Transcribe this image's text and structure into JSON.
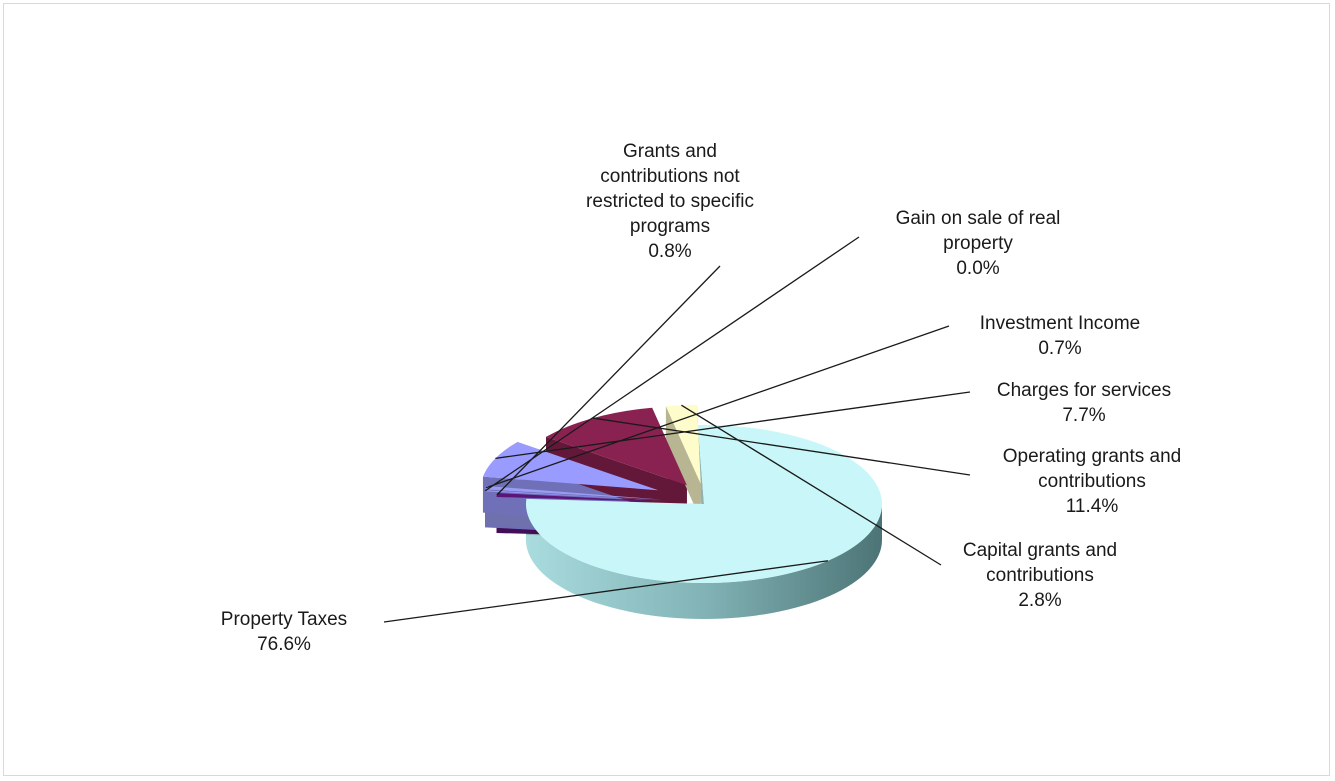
{
  "chart_data": {
    "type": "pie",
    "title": "",
    "style": "3d-exploded",
    "legend": "none",
    "slices": [
      {
        "label": [
          "Property Taxes"
        ],
        "value": 76.6,
        "display": "76.6%",
        "color": "#c9f7f9"
      },
      {
        "label": [
          "Grants and",
          "contributions not",
          "restricted to specific",
          "programs"
        ],
        "value": 0.8,
        "display": "0.8%",
        "color": "#5b1478"
      },
      {
        "label": [
          "Gain on sale of real",
          "property"
        ],
        "value": 0.0,
        "display": "0.0%",
        "color": "#9999ff"
      },
      {
        "label": [
          "Investment Income"
        ],
        "value": 0.7,
        "display": "0.7%",
        "color": "#9a9cf2"
      },
      {
        "label": [
          "Charges for services"
        ],
        "value": 7.7,
        "display": "7.7%",
        "color": "#9a9bff"
      },
      {
        "label": [
          "Operating grants and",
          "contributions"
        ],
        "value": 11.4,
        "display": "11.4%",
        "color": "#8a2251"
      },
      {
        "label": [
          "Capital grants and",
          "contributions"
        ],
        "value": 2.8,
        "display": "2.8%",
        "color": "#fefccb"
      }
    ]
  }
}
